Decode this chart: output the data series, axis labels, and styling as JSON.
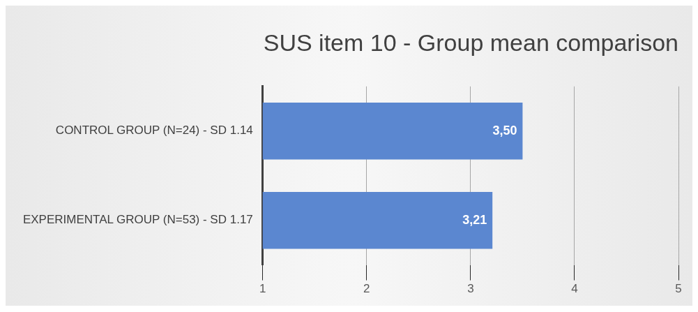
{
  "chart_data": {
    "type": "bar",
    "orientation": "horizontal",
    "title": "SUS item 10 - Group mean comparison",
    "categories": [
      "CONTROL GROUP (N=24) - SD 1.14",
      "EXPERIMENTAL GROUP (N=53) - SD 1.17"
    ],
    "values": [
      3.5,
      3.21
    ],
    "value_labels": [
      "3,50",
      "3,21"
    ],
    "color": "#5b87d0",
    "xlim": [
      1,
      5
    ],
    "xticks": [
      1,
      2,
      3,
      4,
      5
    ],
    "grid": "x",
    "legend": false
  }
}
